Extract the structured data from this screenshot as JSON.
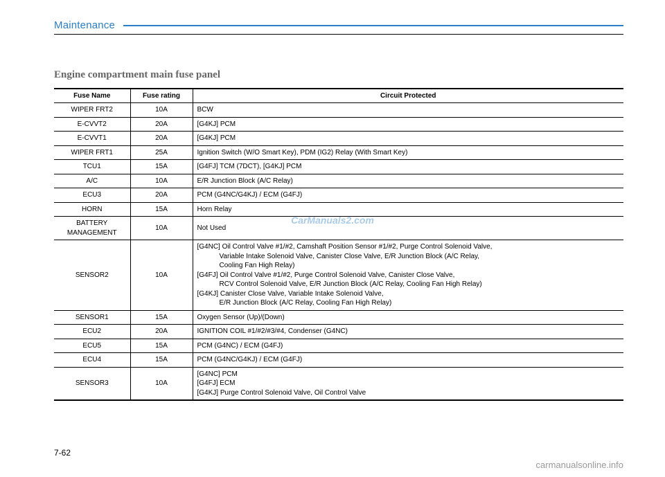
{
  "header": {
    "section": "Maintenance"
  },
  "subtitle": "Engine compartment main fuse panel",
  "table": {
    "headers": [
      "Fuse Name",
      "Fuse rating",
      "Circuit Protected"
    ],
    "rows": [
      {
        "name": "WIPER FRT2",
        "rating": "10A",
        "circuit": "BCW"
      },
      {
        "name": "E-CVVT2",
        "rating": "20A",
        "circuit": "[G4KJ] PCM"
      },
      {
        "name": "E-CVVT1",
        "rating": "20A",
        "circuit": "[G4KJ] PCM"
      },
      {
        "name": "WIPER FRT1",
        "rating": "25A",
        "circuit": "Ignition Switch (W/O Smart Key), PDM (IG2) Relay (With Smart Key)"
      },
      {
        "name": "TCU1",
        "rating": "15A",
        "circuit": "[G4FJ] TCM (7DCT), [G4KJ] PCM"
      },
      {
        "name": "A/C",
        "rating": "10A",
        "circuit": "E/R Junction Block (A/C Relay)"
      },
      {
        "name": "ECU3",
        "rating": "20A",
        "circuit": "PCM (G4NC/G4KJ) / ECM (G4FJ)"
      },
      {
        "name": "HORN",
        "rating": "15A",
        "circuit": "Horn Relay"
      },
      {
        "name": "BATTERY MANAGEMENT",
        "rating": "10A",
        "circuit": "Not Used"
      },
      {
        "name": "SENSOR2",
        "rating": "10A",
        "circuit_lines": [
          "[G4NC] Oil Control Valve #1/#2, Camshaft Position Sensor #1/#2, Purge Control Solenoid Valve,",
          "Variable Intake Solenoid Valve, Canister Close Valve, E/R Junction Block (A/C Relay,",
          "Cooling Fan High Relay)",
          "[G4FJ] Oil Control Valve #1/#2, Purge Control Solenoid Valve, Canister Close Valve,",
          "RCV Control Solenoid Valve, E/R Junction Block (A/C Relay, Cooling Fan High Relay)",
          "[G4KJ] Canister Close Valve, Variable Intake Solenoid Valve,",
          "E/R Junction Block (A/C Relay, Cooling Fan High Relay)"
        ],
        "indent_flags": [
          false,
          true,
          true,
          false,
          true,
          false,
          true
        ]
      },
      {
        "name": "SENSOR1",
        "rating": "15A",
        "circuit": "Oxygen Sensor (Up)/(Down)"
      },
      {
        "name": "ECU2",
        "rating": "20A",
        "circuit": "IGNITION COIL #1/#2/#3/#4, Condenser (G4NC)"
      },
      {
        "name": "ECU5",
        "rating": "15A",
        "circuit": "PCM (G4NC) / ECM (G4FJ)"
      },
      {
        "name": "ECU4",
        "rating": "15A",
        "circuit": "PCM (G4NC/G4KJ) / ECM (G4FJ)"
      },
      {
        "name": "SENSOR3",
        "rating": "10A",
        "circuit_lines": [
          "[G4NC] PCM",
          "[G4FJ] ECM",
          "[G4KJ] Purge Control Solenoid Valve, Oil Control Valve"
        ],
        "indent_flags": [
          false,
          false,
          false
        ]
      }
    ]
  },
  "watermark": "CarManuals2.com",
  "page_number": "7-62",
  "footer": "carmanualsonline.info",
  "colors": {
    "accent": "#2a7ec5",
    "text": "#000000",
    "subtitle": "#666666",
    "footer": "#999999",
    "bg": "#ffffff"
  }
}
